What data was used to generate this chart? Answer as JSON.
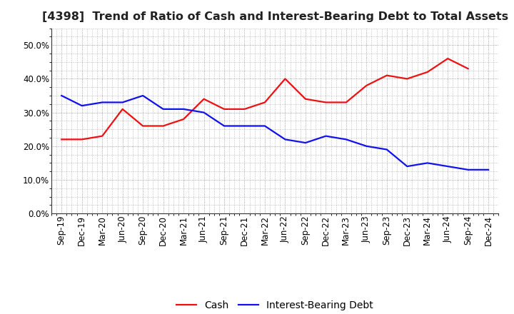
{
  "title": "[4398]  Trend of Ratio of Cash and Interest-Bearing Debt to Total Assets",
  "labels": [
    "Sep-19",
    "Dec-19",
    "Mar-20",
    "Jun-20",
    "Sep-20",
    "Dec-20",
    "Mar-21",
    "Jun-21",
    "Sep-21",
    "Dec-21",
    "Mar-22",
    "Jun-22",
    "Sep-22",
    "Dec-22",
    "Mar-23",
    "Jun-23",
    "Sep-23",
    "Dec-23",
    "Mar-24",
    "Jun-24",
    "Sep-24",
    "Dec-24"
  ],
  "cash": [
    0.22,
    0.22,
    0.23,
    0.31,
    0.26,
    0.26,
    0.28,
    0.34,
    0.31,
    0.31,
    0.33,
    0.4,
    0.34,
    0.33,
    0.33,
    0.38,
    0.41,
    0.4,
    0.42,
    0.46,
    0.43,
    null
  ],
  "debt": [
    0.35,
    0.32,
    0.33,
    0.33,
    0.35,
    0.31,
    0.31,
    0.3,
    0.26,
    0.26,
    0.26,
    0.22,
    0.21,
    0.23,
    0.22,
    0.2,
    0.19,
    0.14,
    0.15,
    0.14,
    0.13,
    0.13
  ],
  "cash_color": "#EE1111",
  "debt_color": "#1111EE",
  "ylim": [
    0.0,
    0.55
  ],
  "yticks": [
    0.0,
    0.1,
    0.2,
    0.3,
    0.4,
    0.5
  ],
  "bg_color": "#FFFFFF",
  "plot_bg_color": "#FFFFFF",
  "grid_color": "#888888",
  "title_fontsize": 11.5,
  "tick_fontsize": 8.5,
  "legend_fontsize": 10,
  "line_width": 1.6
}
